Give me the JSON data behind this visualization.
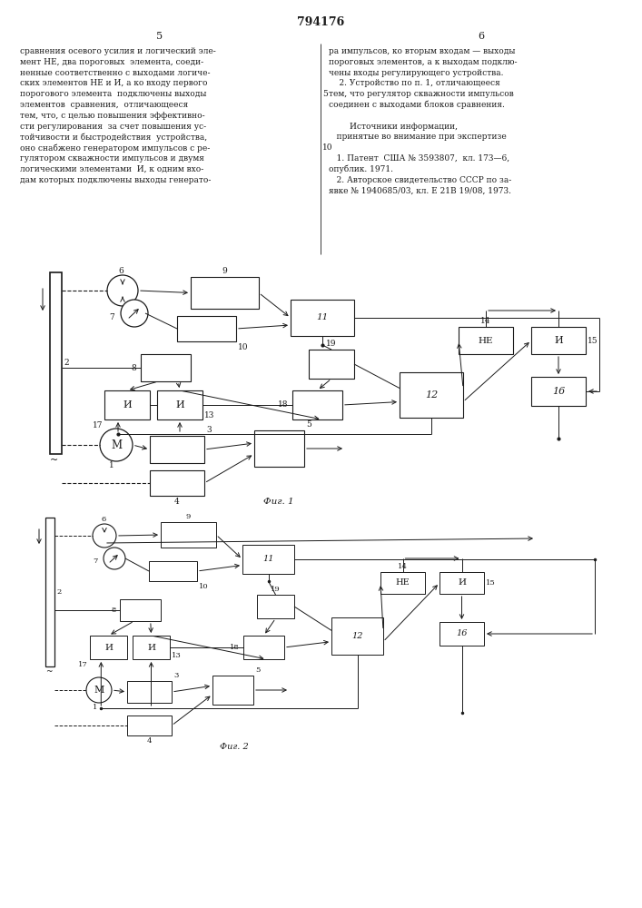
{
  "title": "794176",
  "left_col_text": [
    "сравнения осевого усилия и логический эле-",
    "мент НЕ, два пороговых  элемента, соеди-",
    "ненные соответственно с выходами логиче-",
    "ских элементов НЕ и И, а ко входу первого",
    "порогового элемента  подключены выходы",
    "элементов  сравнения,  отличающееся",
    "тем, что, с целью повышения эффективно-",
    "сти регулирования  за счет повышения ус-",
    "тойчивости и быстродействия  устройства,",
    "оно снабжено генератором импульсов с ре-",
    "гулятором скважности импульсов и двумя",
    "логическими элементами  И, к одним вхо-",
    "дам которых подключены выходы генерато-"
  ],
  "right_col_text": [
    "ра импульсов, ко вторым входам — выходы",
    "пороговых элементов, а к выходам подклю-",
    "чены входы регулирующего устройства.",
    "    2. Устройство по п. 1, отличающееся",
    "тем, что регулятор скважности импульсов",
    "соединен с выходами блоков сравнения.",
    "",
    "        Источники информации,",
    "   принятые во внимание при экспертизе",
    "",
    "   1. Патент  США № 3593807,  кл. 173—6,",
    "опублик. 1971.",
    "   2. Авторское свидетельство СССР по за-",
    "явке № 1940685/03, кл. Е 21В 19/08, 1973."
  ],
  "fig1_caption": "Фиг. 1",
  "fig2_caption": "Фиг. 2",
  "bg_color": "#ffffff",
  "line_color": "#1a1a1a",
  "text_color": "#1a1a1a",
  "page_num_5": "5",
  "page_num_6": "6",
  "line_num_5": "5",
  "line_num_10": "10"
}
